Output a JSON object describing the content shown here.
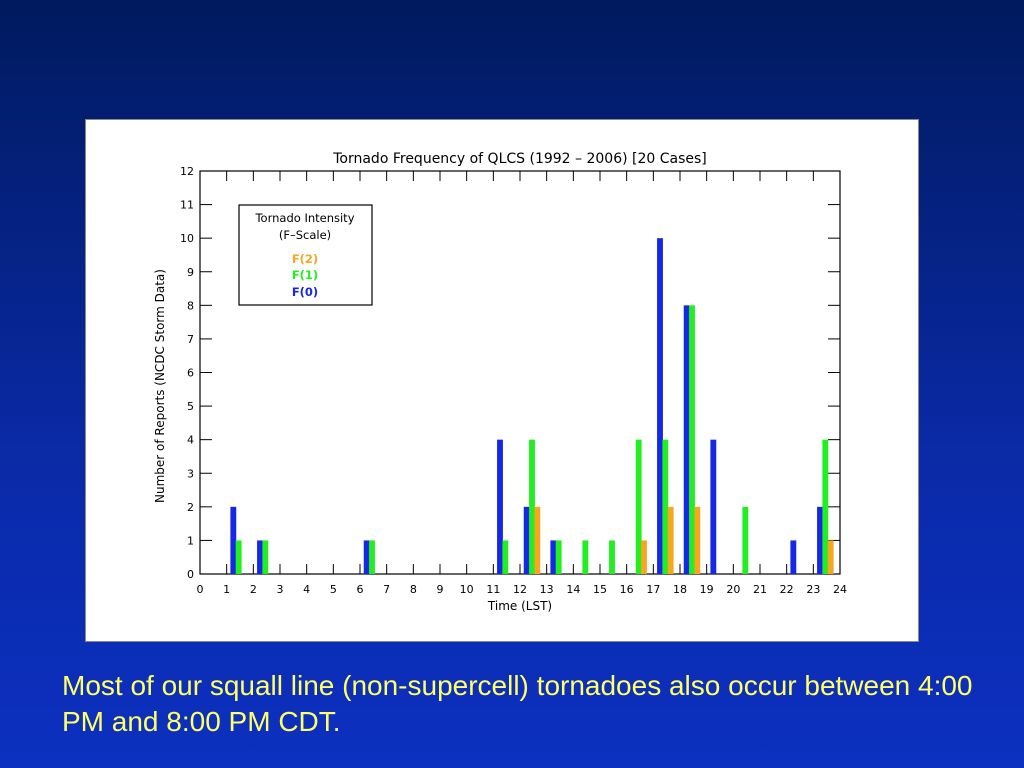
{
  "slide": {
    "caption": "Most of our squall line (non-supercell) tornadoes also occur between 4:00 PM and 8:00 PM CDT."
  },
  "colors": {
    "background": "#0a2aa8",
    "caption": "#ffff66",
    "f0": "#1428e6",
    "f1": "#22ee22",
    "f2": "#f5a623"
  },
  "chart_data": {
    "type": "bar",
    "title": "Tornado Frequency of QLCS (1992 – 2006) [20 Cases]",
    "xlabel": "Time (LST)",
    "ylabel": "Number of Reports (NCDC Storm Data)",
    "xlim": [
      0,
      24
    ],
    "ylim": [
      0,
      12
    ],
    "xticks": [
      "0",
      "1",
      "2",
      "3",
      "4",
      "5",
      "6",
      "7",
      "8",
      "9",
      "10",
      "11",
      "12",
      "13",
      "14",
      "15",
      "16",
      "17",
      "18",
      "19",
      "20",
      "21",
      "22",
      "23",
      "24"
    ],
    "yticks": [
      "0",
      "1",
      "2",
      "3",
      "4",
      "5",
      "6",
      "7",
      "8",
      "9",
      "10",
      "11",
      "12"
    ],
    "grid": false,
    "legend": {
      "title": "Tornado Intensity",
      "subtitle": "(F–Scale)",
      "placement": "top-left",
      "entries": [
        "F(2)",
        "F(1)",
        "F(0)"
      ]
    },
    "series": [
      {
        "name": "F(0)",
        "color": "#1428e6",
        "points": [
          [
            1,
            2
          ],
          [
            2,
            1
          ],
          [
            6,
            1
          ],
          [
            11,
            4
          ],
          [
            12,
            2
          ],
          [
            13,
            1
          ],
          [
            17,
            10
          ],
          [
            18,
            8
          ],
          [
            19,
            4
          ],
          [
            22,
            1
          ],
          [
            23,
            2
          ]
        ]
      },
      {
        "name": "F(1)",
        "color": "#22ee22",
        "points": [
          [
            1,
            1
          ],
          [
            2,
            1
          ],
          [
            6,
            1
          ],
          [
            11,
            1
          ],
          [
            12,
            4
          ],
          [
            13,
            1
          ],
          [
            14,
            1
          ],
          [
            15,
            1
          ],
          [
            16,
            4
          ],
          [
            17,
            4
          ],
          [
            18,
            8
          ],
          [
            20,
            2
          ],
          [
            23,
            4
          ]
        ]
      },
      {
        "name": "F(2)",
        "color": "#f5a623",
        "points": [
          [
            12,
            2
          ],
          [
            16,
            1
          ],
          [
            17,
            2
          ],
          [
            18,
            2
          ],
          [
            23,
            1
          ]
        ]
      }
    ]
  }
}
